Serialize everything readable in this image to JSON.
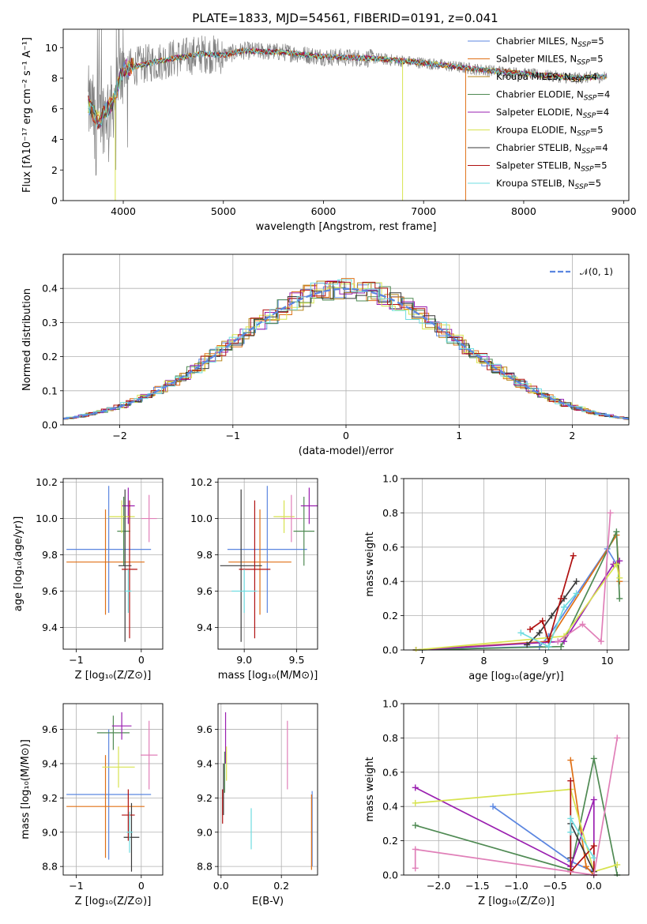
{
  "title": "PLATE=1833, MJD=54561, FIBERID=0191, z=0.041",
  "colors": {
    "Chabrier MILES": "#5b86e0",
    "Salpeter MILES": "#e07016",
    "Kroupa MILES": "#b8861c",
    "Chabrier ELODIE": "#4f8a53",
    "Salpeter ELODIE": "#9a1fb0",
    "Kroupa ELODIE": "#d7e34f",
    "Chabrier STELIB": "#3a3a3a",
    "Salpeter STELIB": "#b01010",
    "Kroupa STELIB": "#6fdce0",
    "data": "#808080",
    "pink": "#e07fb8"
  },
  "chart_data": [
    {
      "id": "spectrum",
      "type": "line",
      "title": "PLATE=1833, MJD=54561, FIBERID=0191, z=0.041",
      "xlabel": "wavelength [Angstrom, rest frame]",
      "ylabel": "Flux [fλ10⁻¹⁷ erg cm⁻² s⁻¹ A⁻¹]",
      "xlim": [
        3400,
        9050
      ],
      "ylim": [
        0,
        11.2
      ],
      "xticks": [
        4000,
        5000,
        6000,
        7000,
        8000,
        9000
      ],
      "yticks": [
        0,
        2,
        4,
        6,
        8,
        10
      ],
      "legend_position": "top-right",
      "legend": [
        {
          "main": "Chabrier MILES, N",
          "sub": "SSP",
          "post": "=5"
        },
        {
          "main": "Salpeter MILES, N",
          "sub": "SSP",
          "post": "=5"
        },
        {
          "main": "Kroupa MILES, N",
          "sub": "SSP",
          "post": "=4"
        },
        {
          "main": "Chabrier ELODIE, N",
          "sub": "SSP",
          "post": "=4"
        },
        {
          "main": "Salpeter ELODIE, N",
          "sub": "SSP",
          "post": "=4"
        },
        {
          "main": "Kroupa ELODIE, N",
          "sub": "SSP",
          "post": "=5"
        },
        {
          "main": "Chabrier STELIB, N",
          "sub": "SSP",
          "post": "=4"
        },
        {
          "main": "Salpeter STELIB, N",
          "sub": "SSP",
          "post": "=5"
        },
        {
          "main": "Kroupa STELIB, N",
          "sub": "SSP",
          "post": "=5"
        }
      ],
      "continuum": [
        [
          3650,
          6.3
        ],
        [
          3750,
          5.2
        ],
        [
          3900,
          6.5
        ],
        [
          4000,
          8.6
        ],
        [
          4200,
          8.9
        ],
        [
          4500,
          9.3
        ],
        [
          4800,
          9.6
        ],
        [
          5000,
          9.5
        ],
        [
          5200,
          9.8
        ],
        [
          5600,
          9.7
        ],
        [
          6000,
          9.4
        ],
        [
          6500,
          9.3
        ],
        [
          7000,
          9.0
        ],
        [
          7500,
          8.6
        ],
        [
          8000,
          8.3
        ],
        [
          8500,
          8.0
        ],
        [
          8830,
          8.1
        ]
      ],
      "model_dropouts": [
        {
          "model": "Kroupa ELODIE",
          "x": 3920
        },
        {
          "model": "Kroupa ELODIE",
          "x": 6790
        },
        {
          "model": "Salpeter MILES",
          "x": 7420
        }
      ]
    },
    {
      "id": "residuals",
      "type": "histogram",
      "xlabel": "(data-model)/error",
      "ylabel": "Normed distribution",
      "xlim": [
        -2.5,
        2.5
      ],
      "ylim": [
        0,
        0.5
      ],
      "xticks": [
        -2,
        -1,
        0,
        1,
        2
      ],
      "yticks": [
        0.0,
        0.1,
        0.2,
        0.3,
        0.4
      ],
      "reference_curve": "N(0,1)",
      "legend_position": "top-right",
      "legend": [
        {
          "main": "𝒩(0, 1)"
        }
      ]
    },
    {
      "id": "age-vs-Z",
      "type": "scatter",
      "xlabel": "Z [log₁₀(Z/Z⊙)]",
      "ylabel": "age  [log₁₀(age/yr)]",
      "xlim": [
        -1.2,
        0.33
      ],
      "ylim": [
        9.28,
        10.22
      ],
      "xticks": [
        -1,
        0
      ],
      "yticks": [
        9.4,
        9.6,
        9.8,
        10.0,
        10.2
      ],
      "points": [
        {
          "model": "Chabrier MILES",
          "x": -0.5,
          "xerr": 0.65,
          "y": 9.83,
          "yerr": 0.35
        },
        {
          "model": "Salpeter MILES",
          "x": -0.55,
          "xerr": 0.6,
          "y": 9.76,
          "yerr": 0.29
        },
        {
          "model": "Chabrier ELODIE",
          "x": -0.27,
          "xerr": 0.1,
          "y": 9.93,
          "yerr": 0.19
        },
        {
          "model": "Salpeter ELODIE",
          "x": -0.2,
          "xerr": 0.1,
          "y": 10.07,
          "yerr": 0.1
        },
        {
          "model": "Kroupa ELODIE",
          "x": -0.3,
          "xerr": 0.2,
          "y": 10.01,
          "yerr": 0.09
        },
        {
          "model": "Chabrier STELIB",
          "x": -0.25,
          "xerr": 0.1,
          "y": 9.74,
          "yerr": 0.42
        },
        {
          "model": "Salpeter STELIB",
          "x": -0.18,
          "xerr": 0.12,
          "y": 9.72,
          "yerr": 0.38
        },
        {
          "model": "Kroupa STELIB",
          "x": -0.2,
          "xerr": 0.05,
          "y": 9.6,
          "yerr": 0.12
        },
        {
          "model": "pink",
          "x": 0.12,
          "xerr": 0.12,
          "y": 10.0,
          "yerr": 0.13
        }
      ]
    },
    {
      "id": "age-vs-mass",
      "type": "scatter",
      "xlabel": "mass [log₁₀(M/M⊙)]",
      "ylabel": "",
      "xlim": [
        8.75,
        9.7
      ],
      "ylim": [
        9.28,
        10.22
      ],
      "xticks": [
        9.0,
        9.5
      ],
      "yticks": [
        9.4,
        9.6,
        9.8,
        10.0,
        10.2
      ],
      "points": [
        {
          "model": "Chabrier MILES",
          "x": 9.22,
          "xerr": 0.38,
          "y": 9.83,
          "yerr": 0.35
        },
        {
          "model": "Salpeter MILES",
          "x": 9.15,
          "xerr": 0.3,
          "y": 9.76,
          "yerr": 0.29
        },
        {
          "model": "Chabrier ELODIE",
          "x": 9.57,
          "xerr": 0.1,
          "y": 9.93,
          "yerr": 0.19
        },
        {
          "model": "Salpeter ELODIE",
          "x": 9.62,
          "xerr": 0.08,
          "y": 10.07,
          "yerr": 0.1
        },
        {
          "model": "Kroupa ELODIE",
          "x": 9.38,
          "xerr": 0.1,
          "y": 10.01,
          "yerr": 0.09
        },
        {
          "model": "Chabrier STELIB",
          "x": 8.97,
          "xerr": 0.2,
          "y": 9.74,
          "yerr": 0.42
        },
        {
          "model": "Salpeter STELIB",
          "x": 9.1,
          "xerr": 0.15,
          "y": 9.72,
          "yerr": 0.38
        },
        {
          "model": "Kroupa STELIB",
          "x": 9.0,
          "xerr": 0.12,
          "y": 9.6,
          "yerr": 0.12
        },
        {
          "model": "pink",
          "x": 9.45,
          "xerr": 0.1,
          "y": 10.0,
          "yerr": 0.13
        }
      ]
    },
    {
      "id": "weight-vs-age",
      "type": "line",
      "xlabel": "age  [log₁₀(age/yr)]",
      "ylabel": "mass weight",
      "xlim": [
        6.7,
        10.35
      ],
      "ylim": [
        0,
        1.0
      ],
      "xticks": [
        7,
        8,
        9,
        10
      ],
      "yticks": [
        0.0,
        0.2,
        0.4,
        0.6,
        0.8,
        1.0
      ],
      "series": [
        {
          "model": "Chabrier MILES",
          "points": [
            [
              6.9,
              0.0
            ],
            [
              8.9,
              0.02
            ],
            [
              9.05,
              0.08
            ],
            [
              10.0,
              0.59
            ],
            [
              10.15,
              0.5
            ]
          ]
        },
        {
          "model": "Salpeter MILES",
          "points": [
            [
              6.9,
              0.0
            ],
            [
              9.05,
              0.05
            ],
            [
              10.15,
              0.67
            ],
            [
              10.2,
              0.4
            ]
          ]
        },
        {
          "model": "Chabrier ELODIE",
          "points": [
            [
              6.9,
              0.0
            ],
            [
              9.25,
              0.02
            ],
            [
              10.15,
              0.69
            ],
            [
              10.2,
              0.3
            ]
          ]
        },
        {
          "model": "Salpeter ELODIE",
          "points": [
            [
              6.9,
              0.0
            ],
            [
              9.3,
              0.05
            ],
            [
              10.1,
              0.5
            ],
            [
              10.2,
              0.52
            ]
          ]
        },
        {
          "model": "Kroupa ELODIE",
          "points": [
            [
              6.9,
              0.0
            ],
            [
              9.3,
              0.08
            ],
            [
              10.15,
              0.5
            ],
            [
              10.2,
              0.42
            ]
          ]
        },
        {
          "model": "Chabrier STELIB",
          "points": [
            [
              8.7,
              0.03
            ],
            [
              8.9,
              0.1
            ],
            [
              9.1,
              0.2
            ],
            [
              9.3,
              0.3
            ],
            [
              9.5,
              0.4
            ]
          ]
        },
        {
          "model": "Salpeter STELIB",
          "points": [
            [
              8.75,
              0.12
            ],
            [
              8.95,
              0.17
            ],
            [
              9.05,
              0.05
            ],
            [
              9.25,
              0.3
            ],
            [
              9.45,
              0.55
            ]
          ]
        },
        {
          "model": "Kroupa STELIB",
          "points": [
            [
              8.6,
              0.1
            ],
            [
              9.05,
              0.02
            ],
            [
              9.3,
              0.25
            ],
            [
              9.5,
              0.33
            ]
          ]
        },
        {
          "model": "pink",
          "points": [
            [
              9.2,
              0.05
            ],
            [
              9.6,
              0.15
            ],
            [
              9.9,
              0.05
            ],
            [
              10.05,
              0.8
            ]
          ]
        }
      ]
    },
    {
      "id": "mass-vs-Z",
      "type": "scatter",
      "xlabel": "Z [log₁₀(Z/Z⊙)]",
      "ylabel": "mass [log₁₀(M/M⊙)]",
      "xlim": [
        -1.2,
        0.33
      ],
      "ylim": [
        8.75,
        9.75
      ],
      "xticks": [
        -1,
        0
      ],
      "yticks": [
        8.8,
        9.0,
        9.2,
        9.4,
        9.6
      ],
      "points": [
        {
          "model": "Chabrier MILES",
          "x": -0.5,
          "xerr": 0.65,
          "y": 9.22,
          "yerr": 0.38
        },
        {
          "model": "Salpeter MILES",
          "x": -0.55,
          "xerr": 0.6,
          "y": 9.15,
          "yerr": 0.3
        },
        {
          "model": "Chabrier ELODIE",
          "x": -0.43,
          "xerr": 0.25,
          "y": 9.58,
          "yerr": 0.1
        },
        {
          "model": "Salpeter ELODIE",
          "x": -0.3,
          "xerr": 0.15,
          "y": 9.62,
          "yerr": 0.08
        },
        {
          "model": "Kroupa ELODIE",
          "x": -0.35,
          "xerr": 0.25,
          "y": 9.38,
          "yerr": 0.12
        },
        {
          "model": "Chabrier STELIB",
          "x": -0.15,
          "xerr": 0.12,
          "y": 8.97,
          "yerr": 0.2
        },
        {
          "model": "Salpeter STELIB",
          "x": -0.2,
          "xerr": 0.1,
          "y": 9.1,
          "yerr": 0.15
        },
        {
          "model": "Kroupa STELIB",
          "x": -0.18,
          "xerr": 0.05,
          "y": 9.0,
          "yerr": 0.12
        },
        {
          "model": "pink",
          "x": 0.12,
          "xerr": 0.13,
          "y": 9.45,
          "yerr": 0.2
        }
      ]
    },
    {
      "id": "mass-vs-EBV",
      "type": "scatter",
      "xlabel": "E(B-V)",
      "ylabel": "",
      "xlim": [
        -0.01,
        0.32
      ],
      "ylim": [
        8.75,
        9.75
      ],
      "xticks": [
        0.0,
        0.2
      ],
      "yticks": [
        8.8,
        9.0,
        9.2,
        9.4,
        9.6
      ],
      "points": [
        {
          "model": "Chabrier MILES",
          "x": 0.302,
          "xerr": 0.0,
          "y": 9.02,
          "yerr": 0.22
        },
        {
          "model": "Salpeter MILES",
          "x": 0.3,
          "xerr": 0.0,
          "y": 9.0,
          "yerr": 0.22
        },
        {
          "model": "Chabrier ELODIE",
          "x": 0.012,
          "xerr": 0.0,
          "y": 9.35,
          "yerr": 0.12
        },
        {
          "model": "Salpeter ELODIE",
          "x": 0.015,
          "xerr": 0.0,
          "y": 9.55,
          "yerr": 0.15
        },
        {
          "model": "Kroupa ELODIE",
          "x": 0.018,
          "xerr": 0.0,
          "y": 9.4,
          "yerr": 0.1
        },
        {
          "model": "Chabrier STELIB",
          "x": 0.008,
          "xerr": 0.0,
          "y": 9.25,
          "yerr": 0.15
        },
        {
          "model": "Salpeter STELIB",
          "x": 0.005,
          "xerr": 0.0,
          "y": 9.15,
          "yerr": 0.1
        },
        {
          "model": "Kroupa STELIB",
          "x": 0.1,
          "xerr": 0.0,
          "y": 9.02,
          "yerr": 0.12
        },
        {
          "model": "pink",
          "x": 0.22,
          "xerr": 0.0,
          "y": 9.45,
          "yerr": 0.2
        }
      ]
    },
    {
      "id": "weight-vs-Z",
      "type": "line",
      "xlabel": "Z [log₁₀(Z/Z⊙)]",
      "ylabel": "mass weight",
      "xlim": [
        -2.45,
        0.45
      ],
      "ylim": [
        0,
        1.0
      ],
      "xticks": [
        -2.0,
        -1.5,
        -1.0,
        -0.5,
        0.0
      ],
      "yticks": [
        0.0,
        0.2,
        0.4,
        0.6,
        0.8,
        1.0
      ],
      "series": [
        {
          "model": "Chabrier MILES",
          "points": [
            [
              -1.3,
              0.4
            ],
            [
              -0.3,
              0.08
            ],
            [
              0.0,
              0.02
            ]
          ]
        },
        {
          "model": "Salpeter MILES",
          "points": [
            [
              -0.3,
              0.67
            ],
            [
              -0.1,
              0.05
            ],
            [
              0.0,
              0.0
            ]
          ]
        },
        {
          "model": "Chabrier ELODIE",
          "points": [
            [
              -2.3,
              0.29
            ],
            [
              -0.3,
              0.03
            ],
            [
              0.0,
              0.68
            ],
            [
              0.3,
              0.0
            ]
          ]
        },
        {
          "model": "Salpeter ELODIE",
          "points": [
            [
              -2.3,
              0.51
            ],
            [
              -0.3,
              0.05
            ],
            [
              0.0,
              0.44
            ],
            [
              0.0,
              0.0
            ]
          ]
        },
        {
          "model": "Kroupa ELODIE",
          "points": [
            [
              -2.3,
              0.42
            ],
            [
              -0.3,
              0.5
            ],
            [
              0.0,
              0.02
            ],
            [
              0.3,
              0.06
            ]
          ]
        },
        {
          "model": "Chabrier STELIB",
          "points": [
            [
              -0.3,
              0.1
            ],
            [
              -0.3,
              0.3
            ],
            [
              0.0,
              0.02
            ]
          ]
        },
        {
          "model": "Salpeter STELIB",
          "points": [
            [
              -0.3,
              0.55
            ],
            [
              -0.3,
              0.02
            ],
            [
              0.0,
              0.17
            ],
            [
              0.0,
              0.0
            ]
          ]
        },
        {
          "model": "Kroupa STELIB",
          "points": [
            [
              -0.3,
              0.25
            ],
            [
              -0.3,
              0.33
            ],
            [
              0.0,
              0.1
            ]
          ]
        },
        {
          "model": "pink",
          "points": [
            [
              -2.3,
              0.04
            ],
            [
              -2.3,
              0.15
            ],
            [
              0.0,
              0.0
            ],
            [
              0.3,
              0.8
            ]
          ]
        }
      ]
    }
  ]
}
